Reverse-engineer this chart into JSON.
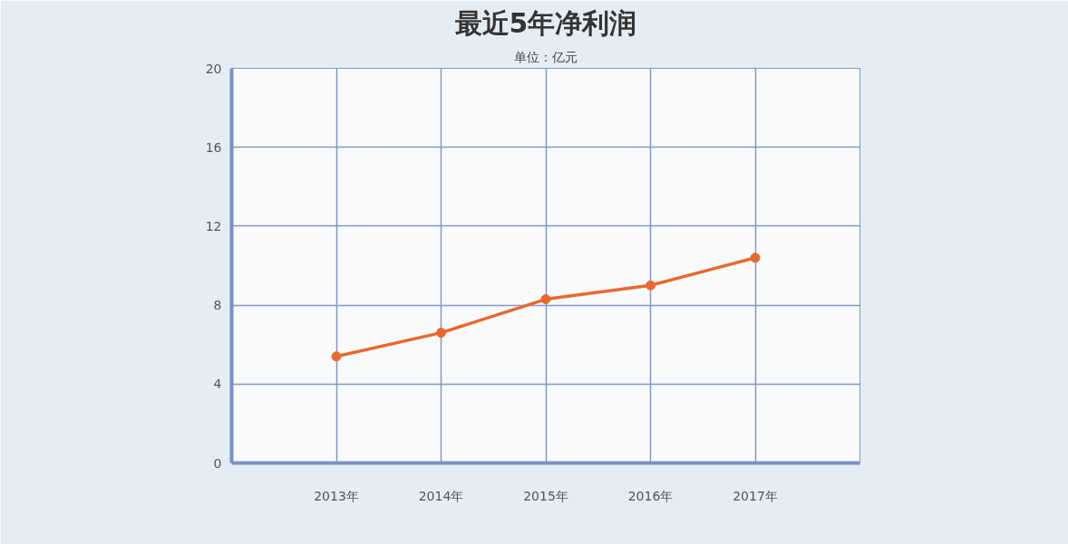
{
  "chart_data": {
    "type": "line",
    "title": "最近5年净利润",
    "subtitle": "单位：亿元",
    "categories": [
      "2013年",
      "2014年",
      "2015年",
      "2016年",
      "2017年"
    ],
    "series": [
      {
        "color": "#e8692e",
        "values": [
          5.4,
          6.6,
          8.3,
          9.0,
          10.4
        ]
      }
    ],
    "ylim": [
      0,
      20
    ],
    "yticks": [
      0,
      4,
      8,
      12,
      16,
      20
    ],
    "grid": true,
    "marker": "circle"
  }
}
